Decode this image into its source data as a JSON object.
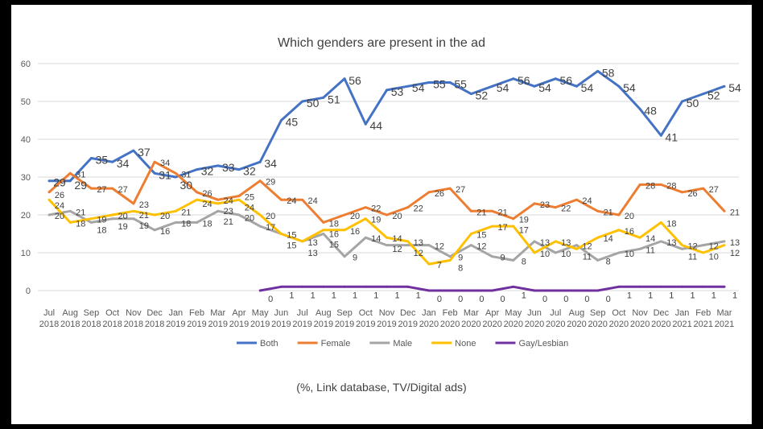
{
  "chart_data": {
    "type": "line",
    "title": "Which genders are present in the ad",
    "note": "(%, Link database, TV/Digital ads)",
    "ylim": [
      0,
      60
    ],
    "yticks": [
      0,
      10,
      20,
      30,
      40,
      50,
      60
    ],
    "grid": true,
    "legend_position": "bottom",
    "categories": [
      [
        "Jul",
        "2018"
      ],
      [
        "Aug",
        "2018"
      ],
      [
        "Sep",
        "2018"
      ],
      [
        "Oct",
        "2018"
      ],
      [
        "Nov",
        "2018"
      ],
      [
        "Dec",
        "2018"
      ],
      [
        "Jan",
        "2019"
      ],
      [
        "Feb",
        "2019"
      ],
      [
        "Mar",
        "2019"
      ],
      [
        "Apr",
        "2019"
      ],
      [
        "May",
        "2019"
      ],
      [
        "Jun",
        "2019"
      ],
      [
        "Jul",
        "2019"
      ],
      [
        "Aug",
        "2019"
      ],
      [
        "Sep",
        "2019"
      ],
      [
        "Oct",
        "2019"
      ],
      [
        "Nov",
        "2019"
      ],
      [
        "Dec",
        "2019"
      ],
      [
        "Jan",
        "2020"
      ],
      [
        "Feb",
        "2020"
      ],
      [
        "Mar",
        "2020"
      ],
      [
        "Apr",
        "2020"
      ],
      [
        "May",
        "2020"
      ],
      [
        "Jun",
        "2020"
      ],
      [
        "Jul",
        "2020"
      ],
      [
        "Aug",
        "2020"
      ],
      [
        "Sep",
        "2020"
      ],
      [
        "Oct",
        "2020"
      ],
      [
        "Nov",
        "2020"
      ],
      [
        "Dec",
        "2020"
      ],
      [
        "Jan",
        "2021"
      ],
      [
        "Feb",
        "2021"
      ],
      [
        "Mar",
        "2021"
      ]
    ],
    "series": [
      {
        "name": "Both",
        "color": "#4472C4",
        "values": [
          29,
          29,
          35,
          34,
          37,
          31,
          30,
          32,
          33,
          32,
          34,
          45,
          50,
          51,
          56,
          44,
          53,
          54,
          55,
          55,
          52,
          54,
          56,
          54,
          56,
          54,
          58,
          54,
          48,
          41,
          50,
          52,
          54
        ]
      },
      {
        "name": "Female",
        "color": "#ED7D31",
        "values": [
          26,
          31,
          27,
          27,
          23,
          34,
          31,
          26,
          24,
          25,
          29,
          24,
          24,
          18,
          20,
          22,
          20,
          22,
          26,
          27,
          21,
          21,
          19,
          23,
          22,
          24,
          21,
          20,
          28,
          28,
          26,
          27,
          21
        ]
      },
      {
        "name": "Male",
        "color": "#A5A5A5",
        "values": [
          20,
          21,
          18,
          19,
          19,
          16,
          18,
          18,
          21,
          20,
          17,
          15,
          13,
          15,
          9,
          14,
          12,
          12,
          12,
          9,
          12,
          9,
          8,
          13,
          10,
          12,
          8,
          10,
          11,
          13,
          11,
          12,
          13
        ]
      },
      {
        "name": "None",
        "color": "#FFC000",
        "values": [
          24,
          18,
          19,
          20,
          21,
          20,
          21,
          24,
          23,
          24,
          20,
          15,
          13,
          16,
          16,
          19,
          14,
          13,
          7,
          8,
          15,
          17,
          17,
          10,
          13,
          11,
          14,
          16,
          14,
          18,
          12,
          10,
          12
        ]
      },
      {
        "name": "Gay/Lesbian",
        "color": "#7030A0",
        "values": [
          null,
          null,
          null,
          null,
          null,
          null,
          null,
          null,
          null,
          null,
          0,
          1,
          1,
          1,
          1,
          1,
          1,
          1,
          0,
          0,
          0,
          0,
          1,
          0,
          0,
          0,
          0,
          1,
          1,
          1,
          1,
          1,
          1
        ]
      }
    ]
  }
}
